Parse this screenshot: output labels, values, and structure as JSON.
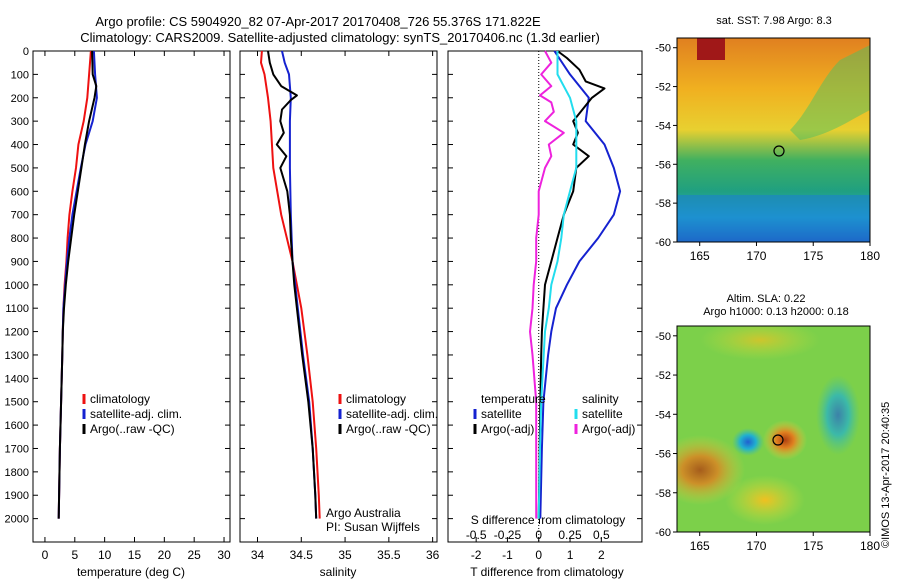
{
  "header": {
    "title_line1": "Argo profile: CS 5904920_82 07-Apr-2017 20170408_726 55.376S 171.822E",
    "title_line2": "Climatology: CARS2009. Satellite-adjusted climatology: synTS_20170406.nc (1.3d earlier)"
  },
  "colors": {
    "climatology": "#ee1111",
    "satellite": "#1522d0",
    "argo": "#000000",
    "sat_salinity": "#22ddee",
    "argo_salinity": "#ee22dd"
  },
  "chart_data": [
    {
      "type": "line",
      "panel": "temperature",
      "xlabel": "temperature (deg C)",
      "ylabel": "",
      "xlim": [
        -2,
        31
      ],
      "ylim": [
        2100,
        0
      ],
      "xticks": [
        0,
        5,
        10,
        15,
        20,
        25,
        30
      ],
      "yticks": [
        0,
        100,
        200,
        300,
        400,
        500,
        600,
        700,
        800,
        900,
        1000,
        1100,
        1200,
        1300,
        1400,
        1500,
        1600,
        1700,
        1800,
        1900,
        2000
      ],
      "legend": [
        "climatology",
        "satellite-adj. clim.",
        "Argo(..raw -QC)"
      ],
      "series": [
        {
          "name": "climatology",
          "y": [
            0,
            100,
            200,
            300,
            400,
            500,
            600,
            700,
            800,
            900,
            1000,
            1100,
            1200,
            1300,
            1500,
            1700,
            2000
          ],
          "x": [
            7.7,
            7.4,
            7.1,
            6.5,
            5.6,
            5.2,
            4.6,
            4.1,
            3.8,
            3.6,
            3.3,
            3.1,
            3.0,
            2.9,
            2.7,
            2.5,
            2.3
          ]
        },
        {
          "name": "satellite-adj. clim.",
          "y": [
            0,
            100,
            200,
            300,
            400,
            500,
            600,
            700,
            800,
            900,
            1000,
            1100,
            1200,
            1300,
            1500,
            1700,
            2000
          ],
          "x": [
            8.2,
            8.4,
            8.7,
            8.0,
            6.8,
            6.0,
            5.3,
            4.6,
            4.1,
            3.7,
            3.4,
            3.1,
            3.0,
            2.9,
            2.7,
            2.5,
            2.3
          ]
        },
        {
          "name": "Argo(..raw -QC)",
          "y": [
            0,
            100,
            150,
            200,
            300,
            400,
            500,
            600,
            700,
            800,
            900,
            1000,
            1100,
            1200,
            1300,
            1500,
            1700,
            2000
          ],
          "x": [
            7.9,
            8.0,
            8.6,
            8.3,
            7.4,
            6.7,
            6.1,
            5.5,
            4.9,
            4.4,
            3.9,
            3.5,
            3.2,
            3.0,
            2.9,
            2.7,
            2.5,
            2.3
          ]
        }
      ]
    },
    {
      "type": "line",
      "panel": "salinity",
      "xlabel": "salinity",
      "xlim": [
        33.8,
        36.05
      ],
      "ylim": [
        2100,
        0
      ],
      "xticks": [
        34,
        34.5,
        35,
        35.5,
        36
      ],
      "legend": [
        "climatology",
        "satellite-adj. clim.",
        "Argo(..raw -QC)"
      ],
      "annotation": [
        "Argo Australia",
        "PI: Susan Wijffels"
      ],
      "series": [
        {
          "name": "climatology",
          "y": [
            0,
            50,
            100,
            200,
            300,
            500,
            700,
            900,
            1000,
            1100,
            1300,
            1500,
            1700,
            1900,
            2000
          ],
          "x": [
            34.05,
            34.04,
            34.08,
            34.12,
            34.15,
            34.18,
            34.27,
            34.4,
            34.45,
            34.5,
            34.57,
            34.63,
            34.67,
            34.7,
            34.71
          ]
        },
        {
          "name": "satellite-adj. clim.",
          "y": [
            0,
            50,
            100,
            200,
            300,
            500,
            700,
            900,
            1000,
            1100,
            1300,
            1500,
            1700,
            1900,
            2000
          ],
          "x": [
            34.28,
            34.31,
            34.36,
            34.38,
            34.37,
            34.37,
            34.38,
            34.4,
            34.43,
            34.46,
            34.52,
            34.59,
            34.63,
            34.66,
            34.67
          ]
        },
        {
          "name": "Argo(..raw -QC)",
          "y": [
            0,
            50,
            100,
            150,
            190,
            210,
            250,
            300,
            350,
            400,
            450,
            500,
            600,
            700,
            800,
            900,
            1000,
            1100,
            1300,
            1500,
            1700,
            1900,
            2000
          ],
          "x": [
            34.12,
            34.14,
            34.18,
            34.27,
            34.45,
            34.38,
            34.28,
            34.26,
            34.3,
            34.22,
            34.33,
            34.26,
            34.34,
            34.37,
            34.38,
            34.4,
            34.42,
            34.45,
            34.51,
            34.58,
            34.63,
            34.66,
            34.67
          ]
        }
      ]
    },
    {
      "type": "line",
      "panel": "difference",
      "xlabel": "T difference from climatology",
      "xlabel_top": "S difference from climatology",
      "xlim": [
        -2.9,
        3.3
      ],
      "ylim": [
        2100,
        0
      ],
      "xticks_T": [
        -2,
        -1,
        0,
        1,
        2
      ],
      "xticks_S": [
        -0.5,
        -0.25,
        0,
        0.25,
        0.5
      ],
      "legend": {
        "temperature": [
          "temperature",
          "satellite",
          "Argo(-adj)"
        ],
        "salinity": [
          "salinity",
          "satellite",
          "Argo(-adj)"
        ]
      },
      "series": [
        {
          "name": "temperature satellite",
          "y": [
            0,
            100,
            200,
            300,
            400,
            500,
            600,
            700,
            800,
            900,
            1000,
            1100,
            1200,
            1300,
            1500,
            1700,
            2000
          ],
          "x": [
            0.5,
            1.0,
            1.6,
            1.5,
            2.1,
            2.4,
            2.6,
            2.4,
            1.9,
            1.3,
            0.9,
            0.55,
            0.4,
            0.3,
            0.15,
            0.1,
            0.05
          ]
        },
        {
          "name": "temperature Argo(-adj)",
          "y": [
            0,
            30,
            80,
            130,
            160,
            200,
            250,
            300,
            350,
            400,
            450,
            500,
            600,
            700,
            800,
            900,
            1000,
            1100,
            1200,
            1300,
            1500,
            1700,
            2000
          ],
          "x": [
            0.6,
            0.9,
            1.3,
            1.5,
            2.1,
            1.7,
            1.4,
            1.1,
            1.25,
            1.1,
            1.6,
            1.2,
            1.1,
            0.8,
            0.6,
            0.4,
            0.2,
            0.15,
            0.1,
            0.08,
            0.05,
            0.03,
            0.0
          ]
        },
        {
          "name": "salinity satellite",
          "y": [
            0,
            100,
            200,
            300,
            400,
            500,
            600,
            700,
            800,
            900,
            1000,
            1100,
            1200,
            1300,
            1500,
            1700,
            2000
          ],
          "x": [
            0.15,
            0.15,
            0.25,
            0.3,
            0.3,
            0.3,
            0.25,
            0.2,
            0.18,
            0.15,
            0.1,
            0.08,
            0.05,
            0.04,
            0.02,
            0.01,
            0.0
          ]
        },
        {
          "name": "salinity Argo(-adj)",
          "y": [
            0,
            50,
            100,
            150,
            190,
            220,
            260,
            300,
            350,
            400,
            450,
            500,
            600,
            700,
            800,
            900,
            1000,
            1100,
            1200,
            1300,
            1500,
            1700,
            2000
          ],
          "x": [
            0.05,
            0.1,
            0.02,
            0.1,
            0.01,
            0.1,
            0.12,
            0.05,
            0.2,
            0.08,
            0.1,
            0.05,
            0.0,
            0.0,
            -0.02,
            -0.02,
            -0.04,
            -0.05,
            -0.07,
            -0.05,
            -0.02,
            -0.02,
            -0.02
          ]
        }
      ]
    },
    {
      "type": "heatmap",
      "panel": "sst-map",
      "title": "sat. SST: 7.98 Argo: 8.3",
      "xlim": [
        163,
        180
      ],
      "ylim": [
        -60,
        -49.5
      ],
      "xticks": [
        165,
        170,
        175,
        180
      ],
      "yticks": [
        -50,
        -52,
        -54,
        -56,
        -58,
        -60
      ],
      "marker": {
        "lon": 171.822,
        "lat": -55.376
      }
    },
    {
      "type": "heatmap",
      "panel": "sla-map",
      "title_line1": "Altim. SLA: 0.22",
      "title_line2": "Argo h1000: 0.13 h2000: 0.18",
      "xlim": [
        163,
        180
      ],
      "ylim": [
        -60,
        -49.5
      ],
      "xticks": [
        165,
        170,
        175,
        180
      ],
      "yticks": [
        -50,
        -52,
        -54,
        -56,
        -58,
        -60
      ],
      "marker": {
        "lon": 171.822,
        "lat": -55.376
      }
    }
  ],
  "footer": {
    "stamp": "©IMOS 13-Apr-2017 20:40:35"
  }
}
